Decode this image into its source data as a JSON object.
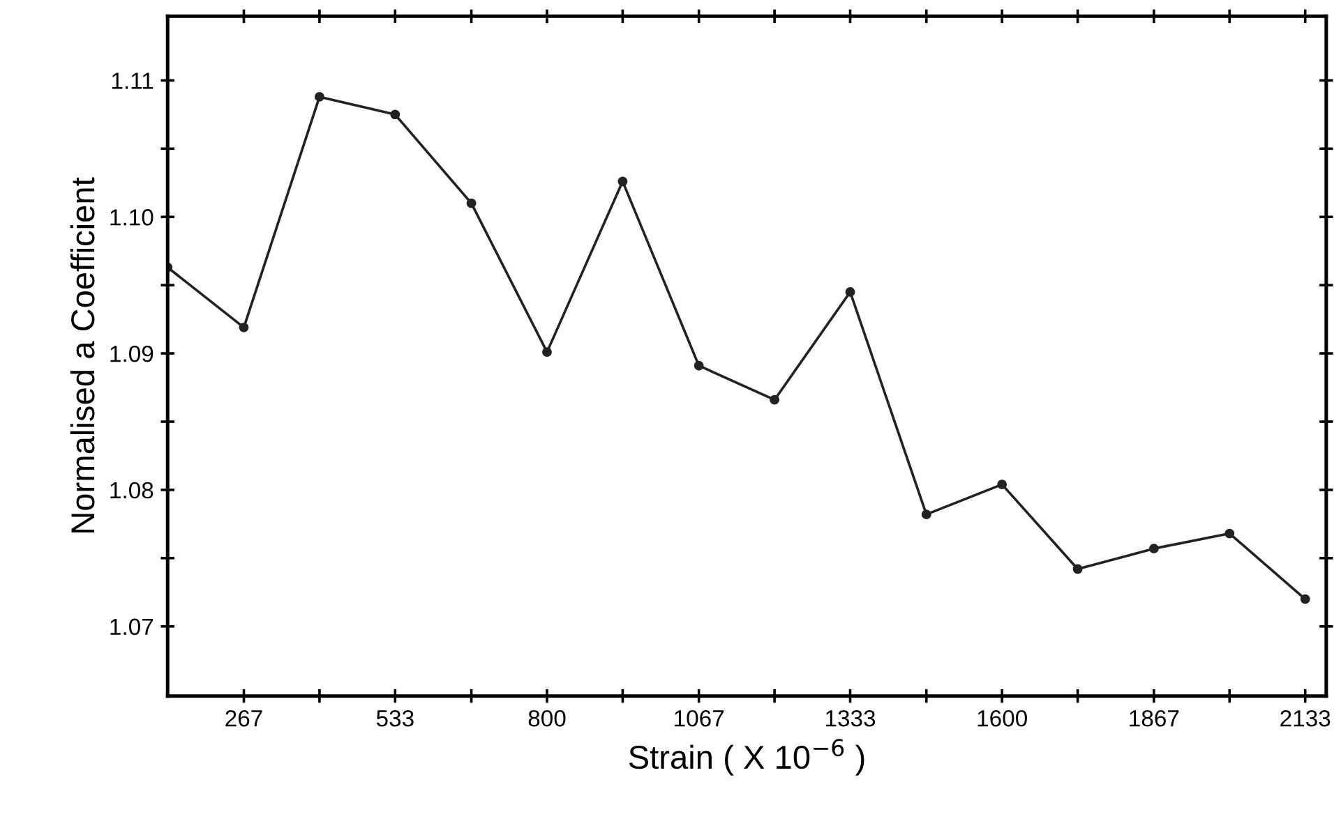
{
  "chart_data": {
    "type": "line",
    "xlabel": "Strain ( X 10$^{−6}$ )",
    "ylabel": "Normalised a Coefficient",
    "x": [
      133,
      267,
      400,
      533,
      667,
      800,
      933,
      1067,
      1200,
      1333,
      1467,
      1600,
      1733,
      1867,
      2000,
      2133
    ],
    "series": [
      {
        "color": "#222222",
        "values": [
          1.0963,
          1.0919,
          1.1088,
          1.1075,
          1.101,
          1.0901,
          1.1026,
          1.0891,
          1.0866,
          1.0945,
          1.0782,
          1.0804,
          1.0742,
          1.0757,
          1.0768,
          1.072
        ]
      }
    ],
    "marker": "circle",
    "line_style": "solid",
    "grid": false,
    "xlim": [
      133,
      2170
    ],
    "ylim": [
      1.0649,
      1.1147
    ],
    "xticks": [
      {
        "value": 267,
        "label": "267"
      },
      {
        "value": 400,
        "label": null
      },
      {
        "value": 533,
        "label": "533"
      },
      {
        "value": 667,
        "label": null
      },
      {
        "value": 800,
        "label": "800"
      },
      {
        "value": 933,
        "label": null
      },
      {
        "value": 1067,
        "label": "1067"
      },
      {
        "value": 1200,
        "label": null
      },
      {
        "value": 1333,
        "label": "1333"
      },
      {
        "value": 1467,
        "label": null
      },
      {
        "value": 1600,
        "label": "1600"
      },
      {
        "value": 1733,
        "label": null
      },
      {
        "value": 1867,
        "label": "1867"
      },
      {
        "value": 2000,
        "label": null
      },
      {
        "value": 2133,
        "label": "2133"
      }
    ],
    "yticks": [
      {
        "value": 1.07,
        "label": "1.07"
      },
      {
        "value": 1.075,
        "label": null
      },
      {
        "value": 1.08,
        "label": "1.08"
      },
      {
        "value": 1.085,
        "label": null
      },
      {
        "value": 1.09,
        "label": "1.09"
      },
      {
        "value": 1.095,
        "label": null
      },
      {
        "value": 1.1,
        "label": "1.10"
      },
      {
        "value": 1.105,
        "label": null
      },
      {
        "value": 1.11,
        "label": "1.11"
      }
    ]
  }
}
